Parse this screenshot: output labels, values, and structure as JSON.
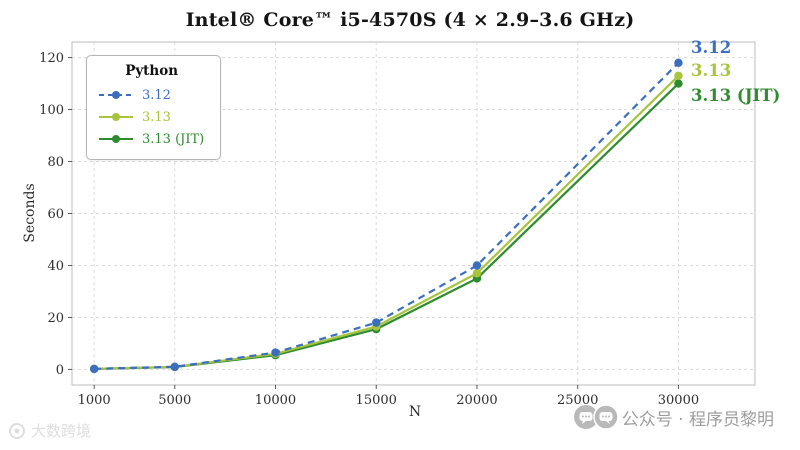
{
  "chart_data": {
    "type": "line",
    "title": "Intel® Core™ i5-4570S (4 × 2.9–3.6 GHz)",
    "xlabel": "N",
    "ylabel": "Seconds",
    "legend_title": "Python",
    "legend_position": "upper left",
    "grid": true,
    "x": [
      1000,
      5000,
      10000,
      15000,
      20000,
      30000
    ],
    "xticks": [
      1000,
      5000,
      10000,
      15000,
      20000,
      25000,
      30000
    ],
    "yticks": [
      0,
      20,
      40,
      60,
      80,
      100,
      120
    ],
    "ylim": [
      0,
      120
    ],
    "series": [
      {
        "name": "3.12",
        "color": "#3c6ebf",
        "style": "dashed",
        "marker": "circle",
        "values": [
          0.2,
          1.0,
          6.5,
          18,
          40,
          118
        ]
      },
      {
        "name": "3.13",
        "color": "#a6c43c",
        "style": "solid",
        "marker": "circle",
        "values": [
          0.2,
          1.0,
          6.0,
          16.5,
          37,
          113
        ]
      },
      {
        "name": "3.13 (JIT)",
        "color": "#2e8b2e",
        "style": "solid",
        "marker": "circle",
        "values": [
          0.2,
          0.9,
          5.5,
          15.5,
          35,
          110
        ]
      }
    ]
  },
  "watermarks": {
    "right_text": "公众号 · 程序员黎明",
    "left_text": "大数跨境"
  }
}
